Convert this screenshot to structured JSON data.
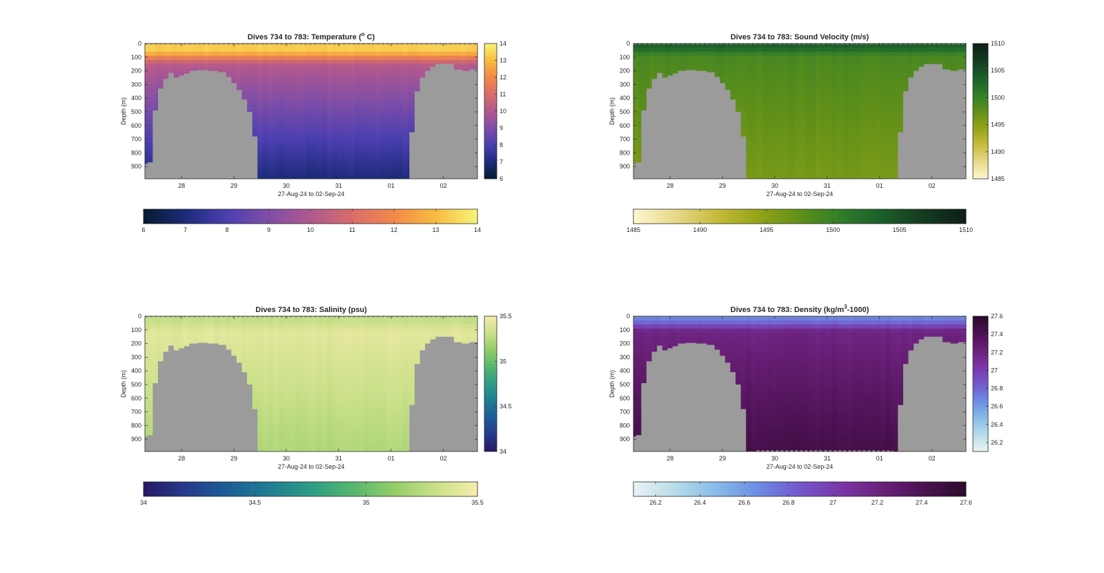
{
  "chart_data": [
    {
      "type": "heatmap",
      "title": "Dives 734 to 783: Temperature (° C)",
      "title_parts": [
        "Dives 734 to 783: Temperature (",
        "o",
        " C)"
      ],
      "ylabel": "Depth (m)",
      "xlabel": "27-Aug-24 to 02-Sep-24",
      "x_ticks": [
        "28",
        "29",
        "30",
        "31",
        "01",
        "02"
      ],
      "x_tick_days": [
        28,
        29,
        30,
        31,
        32,
        33
      ],
      "xlim_days": [
        27.3,
        33.65
      ],
      "y_ticks": [
        0,
        100,
        200,
        300,
        400,
        500,
        600,
        700,
        800,
        900
      ],
      "ylim": [
        0,
        990
      ],
      "colorbar_ticks": [
        6,
        7,
        8,
        9,
        10,
        11,
        12,
        13,
        14
      ],
      "colorbar_tick_labels": [
        "6",
        "7",
        "8",
        "9",
        "10",
        "11",
        "12",
        "13",
        "14"
      ],
      "clim": [
        6,
        14
      ],
      "colormap": [
        "#061a2e",
        "#1d2b7a",
        "#4b3fb0",
        "#7f4ea7",
        "#b0588f",
        "#d86d6a",
        "#f2894a",
        "#f9bb3f",
        "#f5f57a"
      ],
      "surface": {
        "value": 13.3,
        "depth": 55
      },
      "thermo": {
        "value": 10.2,
        "depth": 150
      },
      "deep": {
        "value": 7.0,
        "depth": 990
      },
      "bottom_dashed": false
    },
    {
      "type": "heatmap",
      "title": "Dives 734 to 783: Sound Velocity (m/s)",
      "title_parts": [
        "Dives 734 to 783: Sound Velocity (m/s)",
        "",
        ""
      ],
      "ylabel": "Depth (m)",
      "xlabel": "27-Aug-24 to 02-Sep-24",
      "x_ticks": [
        "28",
        "29",
        "30",
        "31",
        "01",
        "02"
      ],
      "x_tick_days": [
        28,
        29,
        30,
        31,
        32,
        33
      ],
      "xlim_days": [
        27.3,
        33.65
      ],
      "y_ticks": [
        0,
        100,
        200,
        300,
        400,
        500,
        600,
        700,
        800,
        900
      ],
      "ylim": [
        0,
        990
      ],
      "colorbar_ticks": [
        1485,
        1490,
        1495,
        1500,
        1505,
        1510
      ],
      "colorbar_tick_labels": [
        "1485",
        "1490",
        "1495",
        "1500",
        "1505",
        "1510"
      ],
      "clim": [
        1485,
        1510
      ],
      "colormap": [
        "#fdf7d0",
        "#e8d98a",
        "#c7bb3c",
        "#94a317",
        "#5f9019",
        "#2f7d2a",
        "#1b5e2a",
        "#143a20",
        "#0e1f14"
      ],
      "surface": {
        "value": 1503.5,
        "depth": 30
      },
      "thermo": {
        "value": 1499.0,
        "depth": 90
      },
      "deep": {
        "value": 1496.0,
        "depth": 990
      },
      "bottom_dashed": false
    },
    {
      "type": "heatmap",
      "title": "Dives 734 to 783: Salinity (psu)",
      "title_parts": [
        "Dives 734 to 783: Salinity (psu)",
        "",
        ""
      ],
      "ylabel": "Depth (m)",
      "xlabel": "27-Aug-24 to 02-Sep-24",
      "x_ticks": [
        "28",
        "29",
        "30",
        "31",
        "01",
        "02"
      ],
      "x_tick_days": [
        28,
        29,
        30,
        31,
        32,
        33
      ],
      "xlim_days": [
        27.3,
        33.65
      ],
      "y_ticks": [
        0,
        100,
        200,
        300,
        400,
        500,
        600,
        700,
        800,
        900
      ],
      "ylim": [
        0,
        990
      ],
      "colorbar_ticks": [
        34,
        34.5,
        35,
        35.5
      ],
      "colorbar_tick_labels": [
        "34",
        "34.5",
        "35",
        "35.5"
      ],
      "clim": [
        34,
        35.5
      ],
      "colormap": [
        "#281863",
        "#253a8c",
        "#1d5c96",
        "#1f7d92",
        "#2d9c85",
        "#55b66f",
        "#93cc68",
        "#cbe08a",
        "#f5ecaa"
      ],
      "surface": {
        "value": 35.3,
        "depth": 40
      },
      "thermo": {
        "value": 35.42,
        "depth": 120
      },
      "deep": {
        "value": 35.22,
        "depth": 990
      },
      "bottom_dashed": false
    },
    {
      "type": "heatmap",
      "title": "Dives 734 to 783: Density (kg/m³-1000)",
      "title_parts": [
        "Dives 734 to 783: Density (kg/m",
        "3",
        "-1000)"
      ],
      "ylabel": "Depth (m)",
      "xlabel": "27-Aug-24 to 02-Sep-24",
      "x_ticks": [
        "28",
        "29",
        "30",
        "31",
        "01",
        "02"
      ],
      "x_tick_days": [
        28,
        29,
        30,
        31,
        32,
        33
      ],
      "xlim_days": [
        27.3,
        33.65
      ],
      "y_ticks": [
        0,
        100,
        200,
        300,
        400,
        500,
        600,
        700,
        800,
        900
      ],
      "ylim": [
        0,
        990
      ],
      "colorbar_ticks": [
        26.2,
        26.4,
        26.6,
        26.8,
        27,
        27.2,
        27.4,
        27.6
      ],
      "colorbar_tick_labels": [
        "26.2",
        "26.4",
        "26.6",
        "26.8",
        "27",
        "27.2",
        "27.4",
        "27.6"
      ],
      "clim": [
        26.1,
        27.6
      ],
      "colormap": [
        "#e9f3f4",
        "#b8dbe9",
        "#86bbe8",
        "#6c8ce3",
        "#7358cc",
        "#7a36a6",
        "#6a2079",
        "#4a1150",
        "#2c0a2a"
      ],
      "surface": {
        "value": 26.7,
        "depth": 30
      },
      "thermo": {
        "value": 27.18,
        "depth": 110
      },
      "deep": {
        "value": 27.45,
        "depth": 990
      },
      "bottom_dashed": true
    }
  ],
  "seabed_depth_profile": {
    "note": "Seabed depth (m) per dive day shown as gray masks",
    "days": [
      27.3,
      27.35,
      27.45,
      27.55,
      27.65,
      27.75,
      27.85,
      27.95,
      28.05,
      28.15,
      28.3,
      28.5,
      28.7,
      28.85,
      28.95,
      29.05,
      29.15,
      29.25,
      29.35,
      29.45,
      29.55,
      29.65,
      32.25,
      32.35,
      32.45,
      32.55,
      32.65,
      32.75,
      32.85,
      33.0,
      33.2,
      33.35,
      33.5,
      33.65
    ],
    "depths": [
      880,
      870,
      490,
      330,
      260,
      215,
      250,
      235,
      220,
      200,
      195,
      200,
      210,
      245,
      290,
      340,
      410,
      500,
      680,
      990,
      990,
      990,
      990,
      650,
      350,
      250,
      200,
      170,
      150,
      150,
      190,
      200,
      190,
      190
    ]
  }
}
